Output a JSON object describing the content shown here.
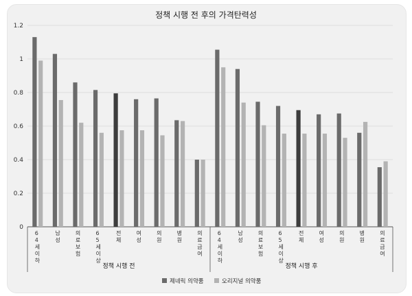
{
  "chart_data": {
    "type": "bar",
    "title": "정책 시행 전 후의 가격탄력성",
    "xlabel": "",
    "ylabel": "",
    "ylim": [
      0,
      1.2
    ],
    "yticks": [
      "0",
      "0.2",
      "0.4",
      "0.6",
      "0.8",
      "1",
      "1.2"
    ],
    "grid": true,
    "legend_position": "bottom",
    "categories": [
      "64세 이하",
      "남성",
      "의료보험",
      "65세 이상",
      "전체",
      "여성",
      "의원",
      "병원",
      "의료급여",
      "64세 이하",
      "남성",
      "의료보험",
      "65세 이상",
      "전체",
      "여성",
      "의원",
      "병원",
      "의료급여"
    ],
    "groups": [
      {
        "label": "정책 시행 전",
        "count": 9
      },
      {
        "label": "정책 시행 후",
        "count": 9
      }
    ],
    "highlight_category": "전체",
    "series": [
      {
        "name": "제네릭 의약품",
        "color": "#6b6b6b",
        "values": [
          1.13,
          1.03,
          0.86,
          0.815,
          0.795,
          0.76,
          0.765,
          0.635,
          0.4,
          1.055,
          0.94,
          0.745,
          0.72,
          0.695,
          0.67,
          0.675,
          0.56,
          0.355
        ]
      },
      {
        "name": "오리지널 의약품",
        "color": "#b3b3b3",
        "values": [
          0.99,
          0.755,
          0.62,
          0.56,
          0.575,
          0.575,
          0.545,
          0.63,
          0.4,
          0.95,
          0.74,
          0.605,
          0.555,
          0.555,
          0.555,
          0.53,
          0.625,
          0.39
        ]
      }
    ],
    "highlight_color": "#3d3d3d"
  }
}
